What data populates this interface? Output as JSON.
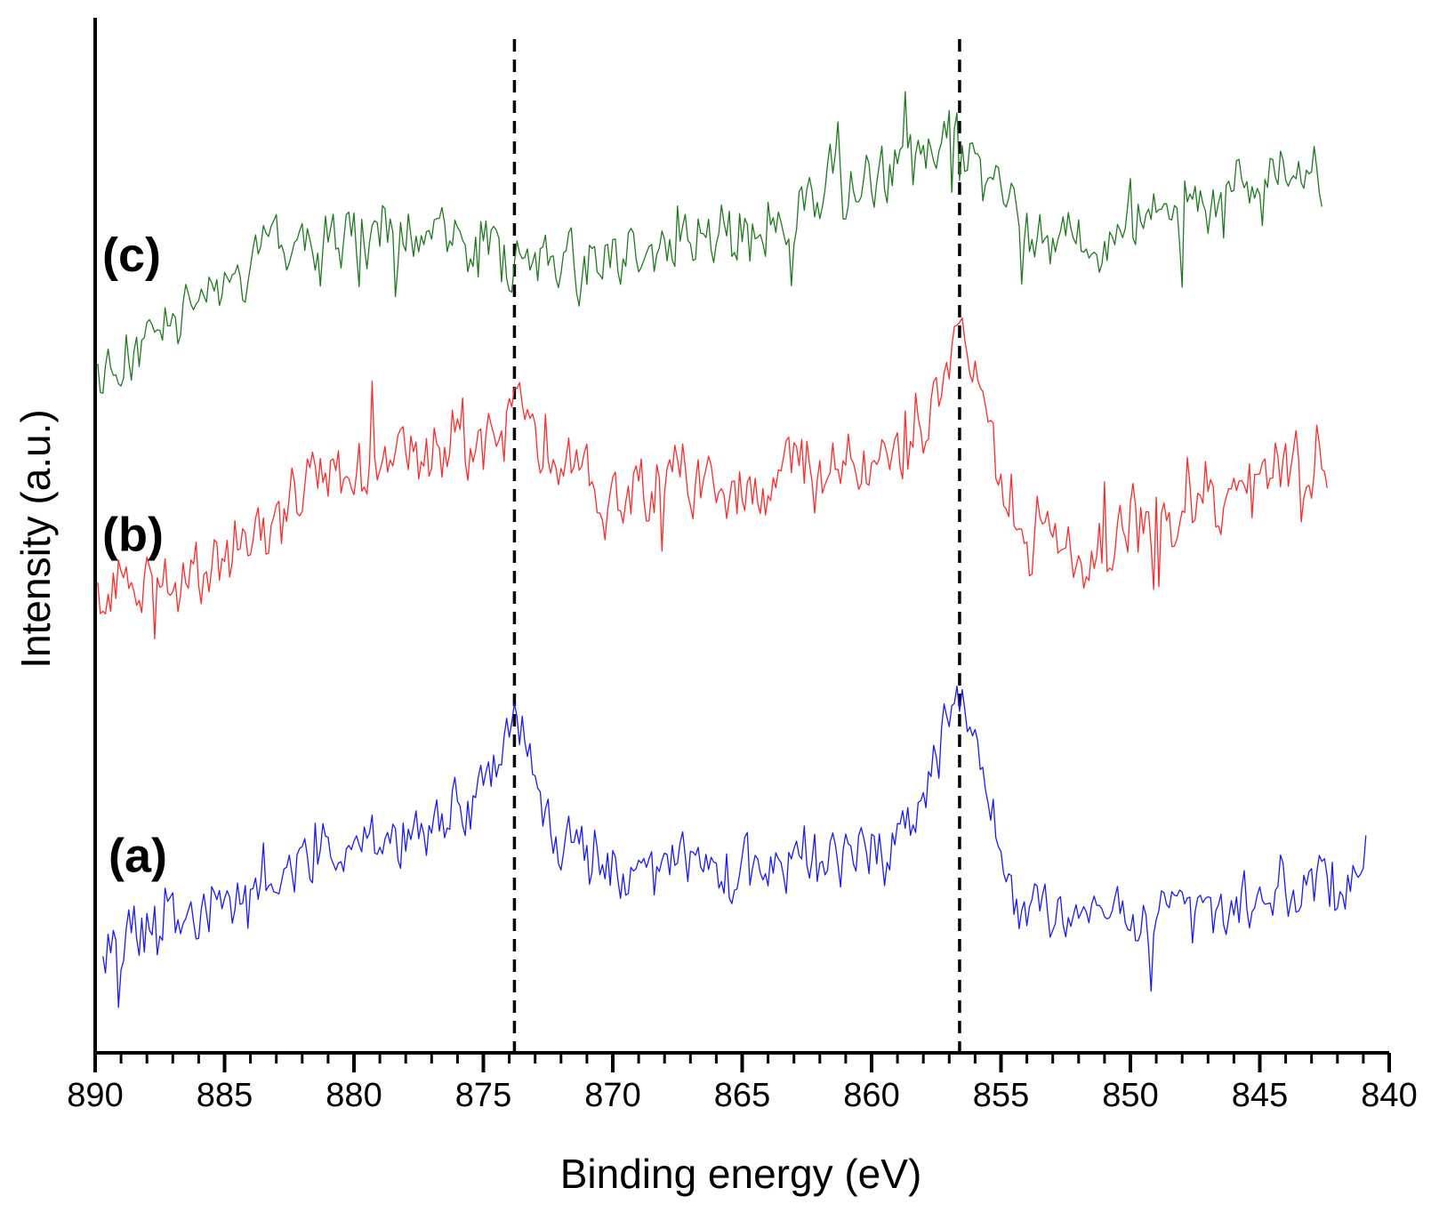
{
  "chart_data": {
    "type": "line",
    "xlabel": "Binding energy (eV)",
    "ylabel": "Intensity (a.u.)",
    "xlim": [
      890,
      840
    ],
    "x_reversed": true,
    "ylim": [
      0,
      10
    ],
    "y_ticks_shown": false,
    "grid": false,
    "xticks": [
      890,
      885,
      880,
      875,
      870,
      865,
      860,
      855,
      850,
      845,
      840
    ],
    "xtick_labels": [
      "890",
      "885",
      "880",
      "875",
      "870",
      "865",
      "860",
      "855",
      "850",
      "845",
      "840"
    ],
    "reference_lines": [
      873.8,
      856.6
    ],
    "reference_line_style": "dashed",
    "series": [
      {
        "label": "(a)",
        "color": "#1a1aff",
        "x_range": [
          889.7,
          840.9
        ],
        "noise": 0.28,
        "baseline": [
          [
            889.7,
            1.2
          ],
          [
            886,
            1.3
          ],
          [
            883,
            1.65
          ],
          [
            880,
            1.95
          ],
          [
            877,
            2.2
          ],
          [
            875.5,
            2.5
          ],
          [
            874.3,
            2.95
          ],
          [
            873.8,
            3.3
          ],
          [
            873.2,
            2.9
          ],
          [
            872.3,
            2.05
          ],
          [
            870,
            1.75
          ],
          [
            865,
            1.8
          ],
          [
            860,
            1.9
          ],
          [
            858.5,
            2.2
          ],
          [
            857.3,
            2.85
          ],
          [
            856.6,
            3.4
          ],
          [
            856,
            3.05
          ],
          [
            855.2,
            2.2
          ],
          [
            854.5,
            1.4
          ],
          [
            850,
            1.2
          ],
          [
            848,
            1.4
          ],
          [
            845,
            1.5
          ],
          [
            841,
            1.75
          ]
        ]
      },
      {
        "label": "(b)",
        "color": "#ff2a2a",
        "x_range": [
          889.9,
          842.4
        ],
        "noise": 0.33,
        "baseline": [
          [
            889.9,
            4.3
          ],
          [
            887,
            4.55
          ],
          [
            884,
            5.0
          ],
          [
            881,
            5.55
          ],
          [
            877,
            5.85
          ],
          [
            874.5,
            6.05
          ],
          [
            873.8,
            6.35
          ],
          [
            872.8,
            5.8
          ],
          [
            870,
            5.5
          ],
          [
            865,
            5.5
          ],
          [
            860,
            5.6
          ],
          [
            858.3,
            5.85
          ],
          [
            857.3,
            6.5
          ],
          [
            856.6,
            7.05
          ],
          [
            855.8,
            6.55
          ],
          [
            855,
            5.4
          ],
          [
            853.5,
            4.95
          ],
          [
            850,
            4.95
          ],
          [
            847,
            5.3
          ],
          [
            845,
            5.55
          ],
          [
            842.4,
            5.6
          ]
        ]
      },
      {
        "label": "(c)",
        "color": "#1f7a1f",
        "x_range": [
          889.9,
          842.6
        ],
        "noise": 0.3,
        "baseline": [
          [
            889.9,
            6.55
          ],
          [
            887,
            7.05
          ],
          [
            884,
            7.55
          ],
          [
            881.5,
            7.9
          ],
          [
            877,
            7.85
          ],
          [
            874,
            7.6
          ],
          [
            870,
            7.65
          ],
          [
            866,
            7.8
          ],
          [
            863,
            8.1
          ],
          [
            860,
            8.45
          ],
          [
            857.5,
            8.8
          ],
          [
            856.6,
            8.9
          ],
          [
            855.5,
            8.6
          ],
          [
            854,
            7.9
          ],
          [
            851,
            7.9
          ],
          [
            848,
            8.15
          ],
          [
            845,
            8.4
          ],
          [
            842.6,
            8.6
          ]
        ]
      }
    ]
  }
}
